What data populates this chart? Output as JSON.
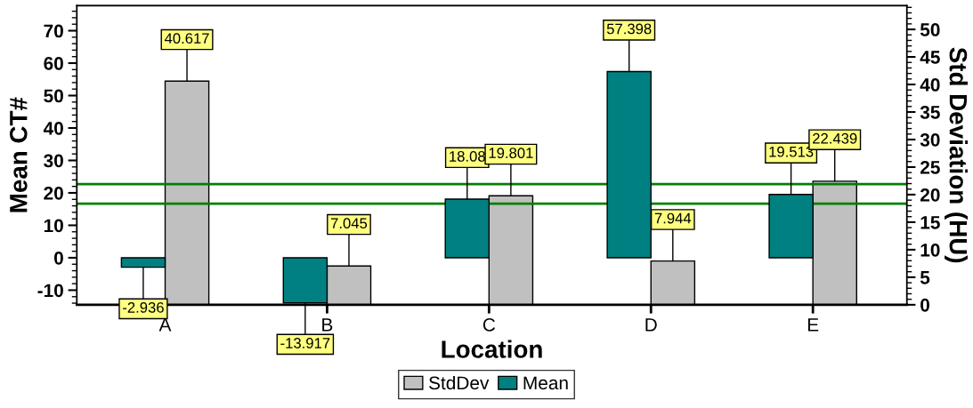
{
  "chart_data": {
    "type": "bar",
    "xlabel": "Location",
    "ylabel": "Mean CT#",
    "y2label": "Std Deviation (HU)",
    "categories": [
      "A",
      "B",
      "C",
      "D",
      "E"
    ],
    "series": [
      {
        "name": "Mean",
        "color": "#008080",
        "values": [
          -2.936,
          -13.917,
          18.08,
          57.398,
          19.513
        ],
        "value_labels": [
          "-2.936",
          "-13.917",
          "18.08",
          "57.398",
          "19.513"
        ]
      },
      {
        "name": "StdDev",
        "color": "#c0c0c0",
        "axis": "y2",
        "values": [
          40.617,
          7.045,
          19.801,
          7.944,
          22.439
        ],
        "value_labels": [
          "40.617",
          "7.045",
          "19.801",
          "7.944",
          "22.439"
        ]
      }
    ],
    "ylim": [
      -14.5,
      77.7
    ],
    "yticks": [
      -10,
      0,
      10,
      20,
      30,
      40,
      50,
      60,
      70
    ],
    "y2lim": [
      0,
      54.3
    ],
    "y2ticks": [
      0,
      5,
      10,
      15,
      20,
      25,
      30,
      35,
      40,
      45,
      50
    ],
    "ref_lines": [
      {
        "axis": "y",
        "value": 22.7,
        "color": "#008000"
      },
      {
        "axis": "y",
        "value": 16.7,
        "color": "#008000"
      }
    ],
    "legend": "bottom",
    "grid": false
  }
}
